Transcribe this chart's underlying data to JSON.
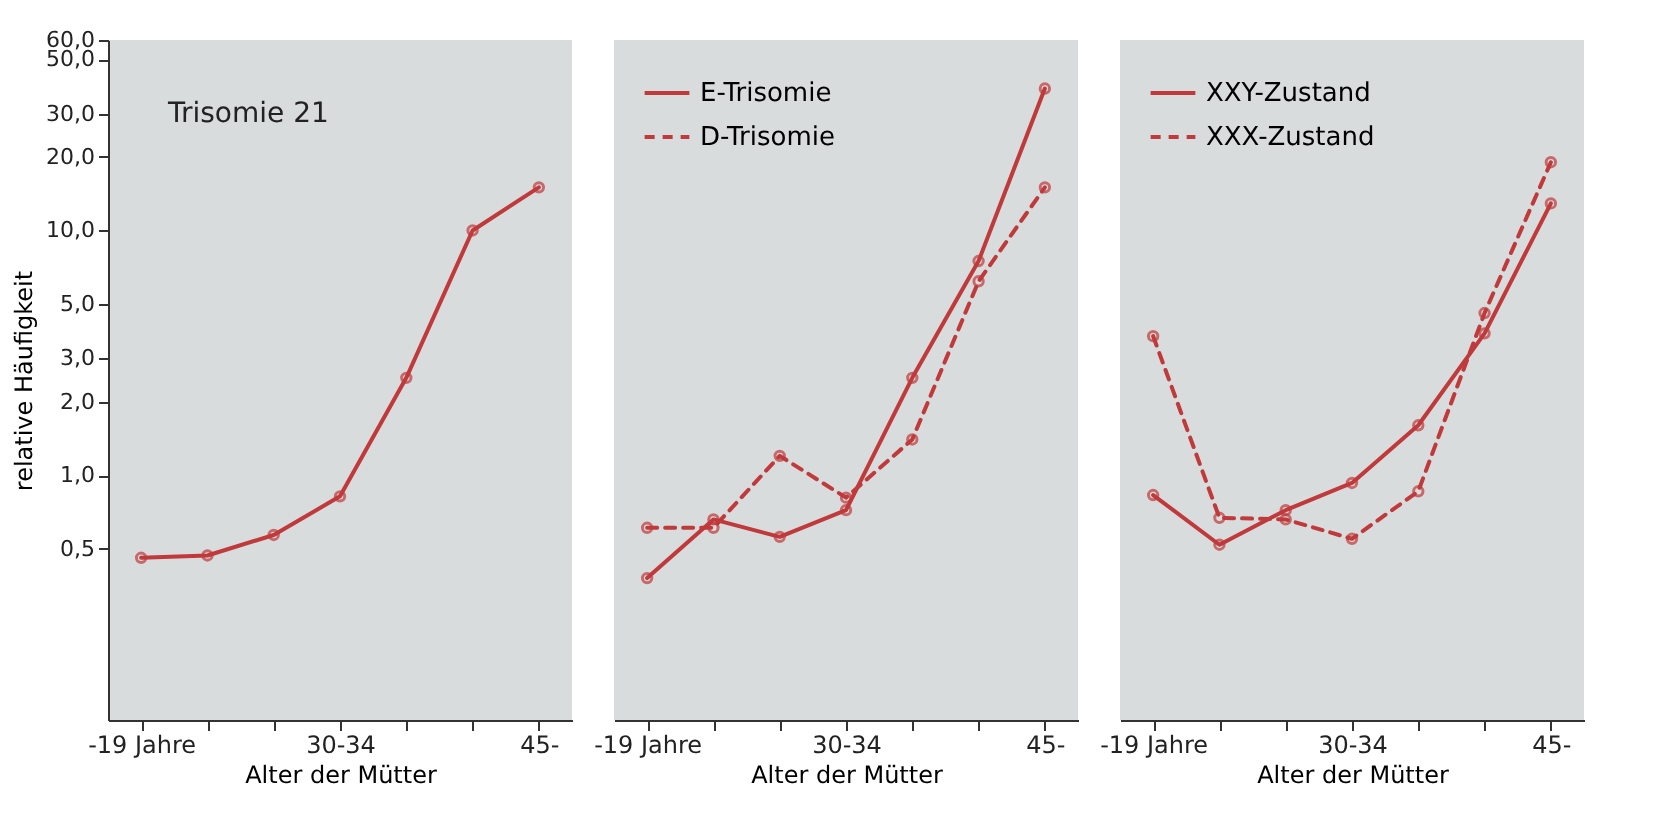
{
  "chart_data": [
    {
      "type": "line",
      "title": "Trisomie 21",
      "xlabel": "Alter der Mütter",
      "ylabel": "relative Häufigkeit",
      "categories": [
        "-19 Jahre",
        null,
        null,
        "30-34",
        null,
        null,
        "45-"
      ],
      "series": [
        {
          "color": "#c0393b",
          "values": [
            0.46,
            0.47,
            0.57,
            0.82,
            2.5,
            10,
            15
          ]
        }
      ],
      "log": true,
      "ylim": [
        0.1,
        60
      ],
      "yticks": [
        {
          "value": 0.5,
          "label": "0,5"
        },
        {
          "value": 1,
          "label": "1,0"
        },
        {
          "value": 2,
          "label": "2,0"
        },
        {
          "value": 3,
          "label": "3,0"
        },
        {
          "value": 5,
          "label": "5,0"
        },
        {
          "value": 10,
          "label": "10,0"
        },
        {
          "value": 20,
          "label": "20,0"
        },
        {
          "value": 30,
          "label": "30,0"
        },
        {
          "value": 50,
          "label": "50,0"
        },
        {
          "value": 60,
          "label": "60,0"
        }
      ],
      "marker": "circle",
      "grid": false,
      "legend": false
    },
    {
      "type": "line",
      "xlabel": "Alter der Mütter",
      "categories": [
        "-19 Jahre",
        null,
        null,
        "30-34",
        null,
        null,
        "45-"
      ],
      "series": [
        {
          "name": "E-Trisomie",
          "color": "#c0393b",
          "line_style": "solid",
          "values": [
            0.38,
            0.66,
            0.56,
            0.72,
            2.5,
            7.5,
            38
          ]
        },
        {
          "name": "D-Trisomie",
          "color": "#c0393b",
          "line_style": "dashed",
          "values": [
            0.61,
            0.61,
            1.2,
            0.81,
            1.4,
            6.2,
            15
          ]
        }
      ],
      "log": true,
      "ylim": [
        0.1,
        60
      ],
      "tick_labels": "x",
      "marker": "circle",
      "grid": false,
      "legend": "top left"
    },
    {
      "type": "line",
      "xlabel": "Alter der Mütter",
      "categories": [
        "-19 Jahre",
        null,
        null,
        "30-34",
        null,
        null,
        "45-"
      ],
      "series": [
        {
          "name": "XXY-Zustand",
          "color": "#c0393b",
          "line_style": "solid",
          "values": [
            0.83,
            0.52,
            0.72,
            0.93,
            1.6,
            3.8,
            12.9
          ]
        },
        {
          "name": "XXX-Zustand",
          "color": "#c0393b",
          "line_style": "dashed",
          "values": [
            3.7,
            0.67,
            0.66,
            0.55,
            0.86,
            4.6,
            19
          ]
        }
      ],
      "log": true,
      "ylim": [
        0.1,
        60
      ],
      "tick_labels": "x",
      "marker": "circle",
      "grid": false,
      "legend": "top left"
    }
  ]
}
